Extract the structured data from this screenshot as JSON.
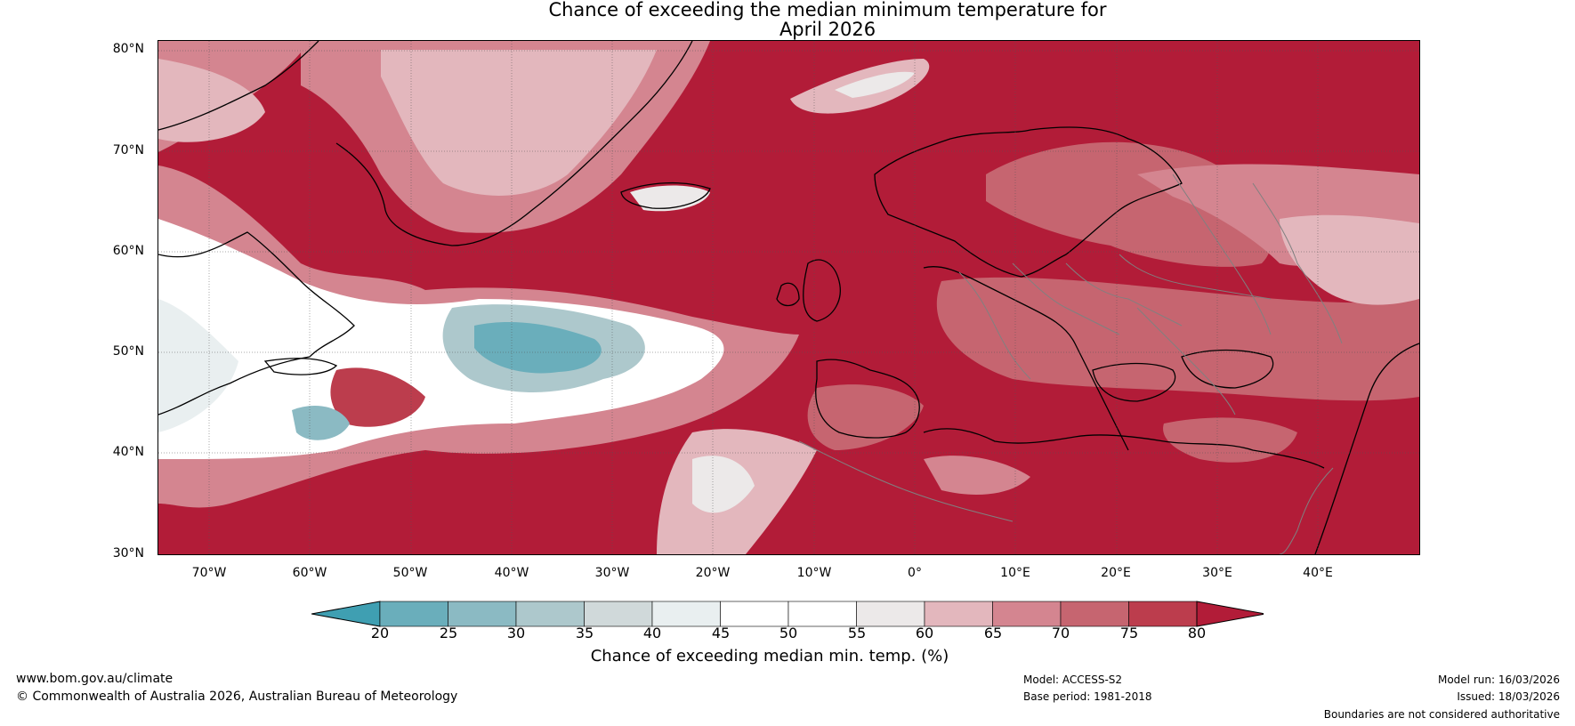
{
  "title": {
    "line1": "Chance of exceeding the median minimum temperature for",
    "line2": "April 2026"
  },
  "map": {
    "region": "North Atlantic and Europe",
    "base_color": "#b21c38",
    "lat_labels": [
      "80°N",
      "70°N",
      "60°N",
      "50°N",
      "40°N",
      "30°N"
    ],
    "lon_labels": [
      "70°W",
      "60°W",
      "50°W",
      "40°W",
      "30°W",
      "20°W",
      "10°W",
      "0°",
      "10°E",
      "20°E",
      "30°E",
      "40°E"
    ]
  },
  "colorbar": {
    "label": "Chance of exceeding median min. temp. (%)",
    "ticks": [
      "20",
      "25",
      "30",
      "35",
      "40",
      "45",
      "50",
      "55",
      "60",
      "65",
      "70",
      "75",
      "80"
    ],
    "colors": [
      "#3f9fb2",
      "#6aaebb",
      "#8bbac3",
      "#adc8cc",
      "#d0d9da",
      "#e9eff0",
      "#ffffff",
      "#ffffff",
      "#ece9e9",
      "#e3b7bd",
      "#d48590",
      "#c66570",
      "#bc3d4d",
      "#b21c38"
    ]
  },
  "footer": {
    "website": "www.bom.gov.au/climate",
    "copyright": "© Commonwealth of Australia 2026, Australian Bureau of Meteorology",
    "model": "Model: ACCESS-S2",
    "base_period": "Base period: 1981-2018",
    "model_run": "Model run: 16/03/2026",
    "issued": "Issued: 18/03/2026",
    "disclaimer": "Boundaries are not considered authoritative"
  }
}
